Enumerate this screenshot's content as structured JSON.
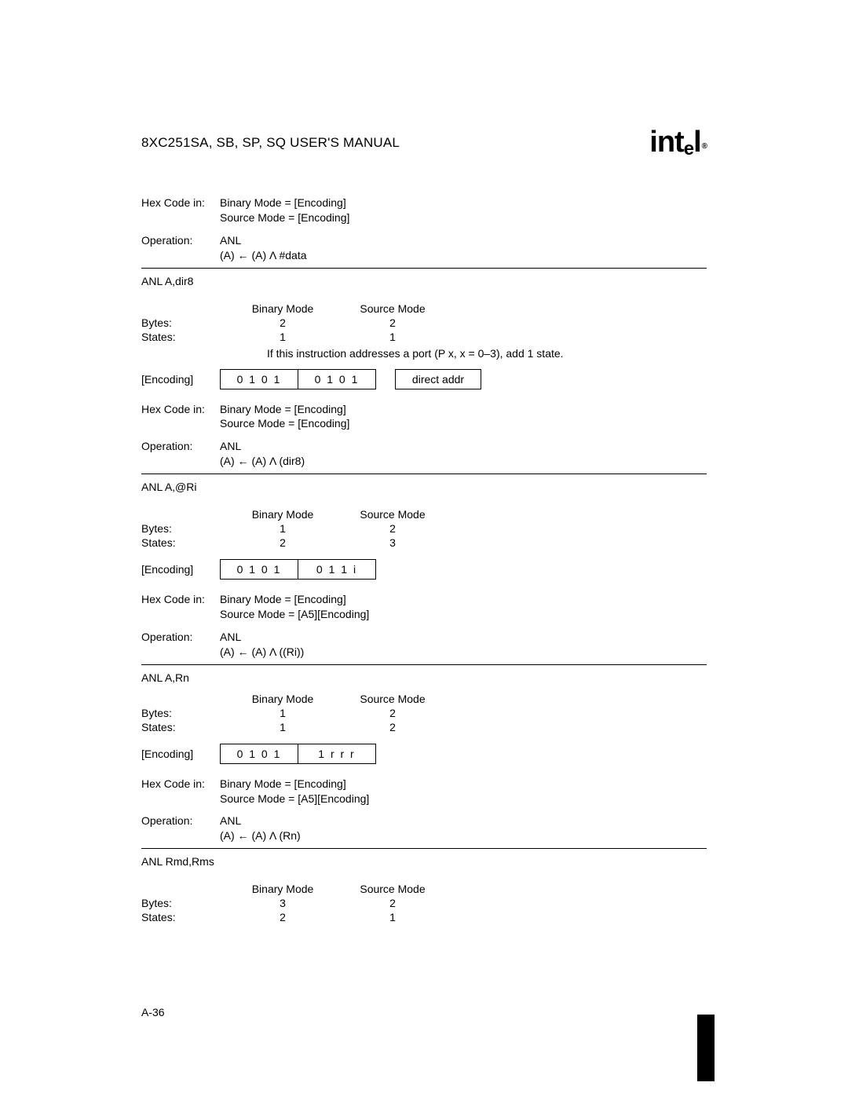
{
  "header": {
    "title": "8XC251SA, SB, SP, SQ USER'S MANUAL",
    "logo_text": "int",
    "logo_sub": "e",
    "logo_text2": "l",
    "logo_reg": "®"
  },
  "labels": {
    "hex_code_in": "Hex Code in:",
    "operation": "Operation:",
    "bytes": "Bytes:",
    "states": "States:",
    "encoding": "[Encoding]",
    "binary_mode": "Binary Mode",
    "source_mode": "Source Mode"
  },
  "sec0": {
    "hex_binary": "Binary Mode = [Encoding]",
    "hex_source": "Source Mode = [Encoding]",
    "op_name": "ANL",
    "op_expr": "(A) ← (A) Λ #data"
  },
  "sec1": {
    "title": "ANL A,dir8",
    "bytes_b": "2",
    "bytes_s": "2",
    "states_b": "1",
    "states_s": "1",
    "note": "If this instruction addresses a port (P x, x = 0–3), add 1 state.",
    "enc1": "0 1 0 1",
    "enc2": "0 1 0 1",
    "enc3": "direct addr",
    "hex_binary": "Binary Mode = [Encoding]",
    "hex_source": "Source Mode = [Encoding]",
    "op_name": "ANL",
    "op_expr": "(A) ← (A) Λ (dir8)"
  },
  "sec2": {
    "title": "ANL A,@Ri",
    "bytes_b": "1",
    "bytes_s": "2",
    "states_b": "2",
    "states_s": "3",
    "enc1": "0 1 0 1",
    "enc2": "0 1 1 i",
    "hex_binary": "Binary Mode = [Encoding]",
    "hex_source": "Source Mode = [A5][Encoding]",
    "op_name": "ANL",
    "op_expr": "(A) ← (A) Λ ((Ri))"
  },
  "sec3": {
    "title": "ANL A,Rn",
    "bytes_b": "1",
    "bytes_s": "2",
    "states_b": "1",
    "states_s": "2",
    "enc1": "0 1 0 1",
    "enc2": "1 r r r",
    "hex_binary": "Binary Mode = [Encoding]",
    "hex_source": "Source Mode = [A5][Encoding]",
    "op_name": "ANL",
    "op_expr": "(A) ← (A) Λ (Rn)"
  },
  "sec4": {
    "title": "ANL Rmd,Rms",
    "bytes_b": "3",
    "bytes_s": "2",
    "states_b": "2",
    "states_s": "1"
  },
  "footer": {
    "page": "A-36"
  }
}
